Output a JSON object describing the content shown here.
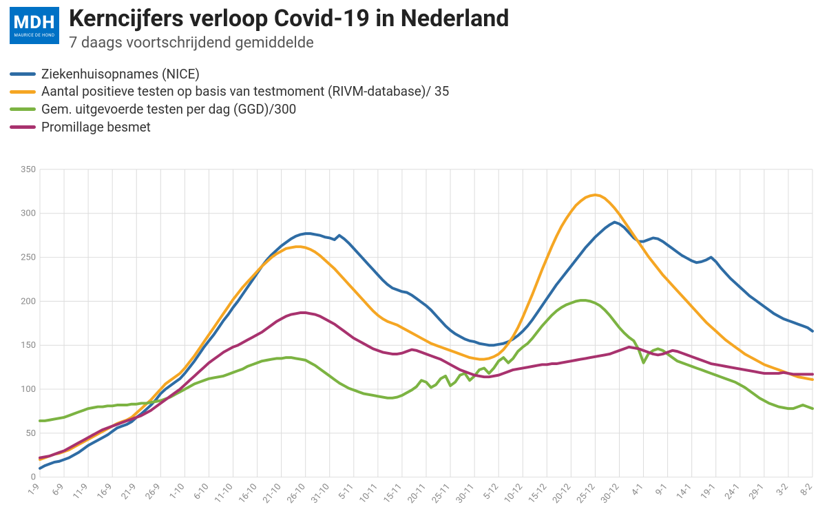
{
  "logo": {
    "main": "MDH",
    "sub": "MAURICE DE HOND",
    "bg": "#0071c5",
    "fg": "#ffffff"
  },
  "title": "Kerncijfers verloop Covid-19 in Nederland",
  "subtitle": "7 daags voortschrijdend gemiddelde",
  "chart": {
    "type": "line",
    "background_color": "#ffffff",
    "grid_color": "#dcdcdc",
    "axis_label_color": "#888888",
    "axis_fontsize": 13,
    "line_width": 4,
    "ylim": [
      0,
      350
    ],
    "ytick_step": 50,
    "yticks": [
      0,
      50,
      100,
      150,
      200,
      250,
      300,
      350
    ],
    "x_labels": [
      "1-9",
      "6-9",
      "11-9",
      "16-9",
      "21-9",
      "26-9",
      "1-10",
      "6-10",
      "11-10",
      "16-10",
      "21-10",
      "26-10",
      "31-10",
      "5-11",
      "10-11",
      "15-11",
      "20-11",
      "25-11",
      "30-11",
      "5-12",
      "10-12",
      "15-12",
      "20-12",
      "25-12",
      "30-12",
      "4-1",
      "9-1",
      "14-1",
      "19-1",
      "24-1",
      "29-1",
      "3-2",
      "8-2"
    ],
    "x_label_rotation": -50,
    "series": [
      {
        "name": "Ziekenhuisopnames (NICE)",
        "color": "#2e6ca4",
        "values": [
          10,
          13,
          15,
          17,
          18,
          20,
          22,
          25,
          28,
          32,
          36,
          39,
          42,
          45,
          48,
          52,
          56,
          58,
          60,
          63,
          68,
          72,
          77,
          82,
          88,
          95,
          100,
          104,
          108,
          112,
          118,
          125,
          132,
          140,
          148,
          155,
          162,
          170,
          178,
          185,
          193,
          200,
          208,
          216,
          224,
          232,
          240,
          247,
          253,
          258,
          263,
          267,
          271,
          274,
          276,
          277,
          277,
          276,
          275,
          273,
          272,
          270,
          275,
          271,
          266,
          260,
          254,
          248,
          242,
          236,
          230,
          224,
          219,
          215,
          213,
          211,
          210,
          207,
          203,
          199,
          195,
          190,
          184,
          178,
          172,
          167,
          163,
          160,
          157,
          155,
          154,
          152,
          151,
          150,
          150,
          151,
          152,
          154,
          157,
          161,
          166,
          172,
          179,
          187,
          195,
          203,
          211,
          219,
          226,
          233,
          240,
          247,
          254,
          261,
          267,
          273,
          278,
          283,
          287,
          290,
          288,
          284,
          278,
          272,
          268,
          268,
          270,
          272,
          271,
          268,
          264,
          260,
          256,
          252,
          249,
          246,
          244,
          245,
          247,
          250,
          245,
          238,
          232,
          226,
          221,
          216,
          211,
          206,
          202,
          198,
          194,
          190,
          186,
          183,
          180,
          178,
          176,
          174,
          172,
          170,
          166
        ]
      },
      {
        "name": "Aantal positieve testen op basis van testmoment (RIVM-database)/ 35",
        "color": "#f5a623",
        "values": [
          20,
          22,
          24,
          26,
          27,
          29,
          31,
          34,
          37,
          40,
          43,
          46,
          49,
          52,
          55,
          58,
          61,
          63,
          65,
          68,
          73,
          78,
          83,
          88,
          94,
          100,
          106,
          110,
          114,
          118,
          124,
          131,
          138,
          146,
          154,
          162,
          170,
          178,
          186,
          194,
          202,
          209,
          216,
          222,
          228,
          234,
          240,
          245,
          250,
          254,
          257,
          260,
          261,
          262,
          262,
          261,
          259,
          256,
          252,
          247,
          242,
          237,
          231,
          225,
          219,
          213,
          207,
          201,
          195,
          189,
          184,
          180,
          177,
          175,
          173,
          170,
          167,
          164,
          161,
          158,
          155,
          152,
          150,
          148,
          146,
          144,
          142,
          140,
          138,
          136,
          135,
          134,
          134,
          135,
          137,
          140,
          145,
          152,
          160,
          170,
          182,
          195,
          208,
          222,
          236,
          249,
          262,
          274,
          285,
          294,
          302,
          309,
          314,
          318,
          320,
          321,
          320,
          317,
          312,
          306,
          299,
          291,
          283,
          275,
          267,
          259,
          251,
          244,
          237,
          230,
          224,
          218,
          212,
          206,
          200,
          194,
          188,
          182,
          176,
          171,
          166,
          161,
          156,
          152,
          148,
          144,
          140,
          137,
          134,
          131,
          128,
          126,
          124,
          122,
          120,
          118,
          116,
          114,
          113,
          112,
          111
        ]
      },
      {
        "name": "Gem. uitgevoerde testen per dag (GGD)/300",
        "color": "#7cb342",
        "values": [
          64,
          64,
          65,
          66,
          67,
          68,
          70,
          72,
          74,
          76,
          78,
          79,
          80,
          80,
          81,
          81,
          82,
          82,
          82,
          83,
          83,
          84,
          84,
          85,
          86,
          87,
          89,
          91,
          94,
          97,
          100,
          103,
          106,
          108,
          110,
          112,
          113,
          114,
          115,
          117,
          119,
          121,
          123,
          126,
          128,
          130,
          132,
          133,
          134,
          135,
          135,
          136,
          136,
          135,
          134,
          133,
          130,
          127,
          123,
          119,
          115,
          111,
          107,
          104,
          101,
          99,
          97,
          95,
          94,
          93,
          92,
          91,
          90,
          90,
          91,
          93,
          96,
          99,
          103,
          110,
          108,
          102,
          105,
          112,
          115,
          104,
          108,
          116,
          118,
          110,
          115,
          122,
          124,
          118,
          124,
          132,
          136,
          130,
          135,
          143,
          148,
          152,
          158,
          165,
          172,
          178,
          184,
          189,
          193,
          196,
          198,
          200,
          201,
          201,
          200,
          198,
          195,
          190,
          184,
          177,
          170,
          164,
          159,
          155,
          145,
          130,
          140,
          144,
          146,
          144,
          140,
          136,
          132,
          130,
          128,
          126,
          124,
          122,
          120,
          118,
          116,
          114,
          112,
          110,
          108,
          105,
          102,
          98,
          94,
          90,
          87,
          84,
          82,
          80,
          79,
          78,
          78,
          80,
          82,
          80,
          78
        ]
      },
      {
        "name": "Promillage besmet",
        "color": "#a8326e",
        "values": [
          22,
          23,
          24,
          26,
          28,
          30,
          33,
          36,
          39,
          42,
          45,
          48,
          51,
          54,
          56,
          58,
          60,
          62,
          64,
          66,
          68,
          70,
          73,
          76,
          80,
          84,
          88,
          92,
          96,
          100,
          105,
          110,
          115,
          120,
          125,
          130,
          134,
          138,
          142,
          145,
          148,
          150,
          153,
          156,
          159,
          162,
          165,
          169,
          173,
          177,
          180,
          183,
          185,
          186,
          187,
          187,
          186,
          185,
          183,
          180,
          177,
          174,
          170,
          166,
          162,
          158,
          155,
          152,
          149,
          146,
          144,
          142,
          141,
          140,
          140,
          141,
          143,
          145,
          144,
          142,
          140,
          138,
          136,
          134,
          131,
          128,
          125,
          122,
          120,
          118,
          116,
          115,
          114,
          114,
          115,
          116,
          118,
          120,
          122,
          123,
          124,
          125,
          126,
          127,
          128,
          128,
          129,
          129,
          130,
          131,
          132,
          133,
          134,
          135,
          136,
          137,
          138,
          139,
          140,
          142,
          144,
          146,
          148,
          147,
          146,
          144,
          142,
          140,
          139,
          140,
          142,
          144,
          143,
          141,
          139,
          137,
          135,
          133,
          131,
          129,
          128,
          127,
          126,
          125,
          124,
          123,
          122,
          121,
          120,
          119,
          118,
          118,
          118,
          118,
          119,
          118,
          117,
          117,
          117,
          117,
          117
        ]
      }
    ]
  }
}
